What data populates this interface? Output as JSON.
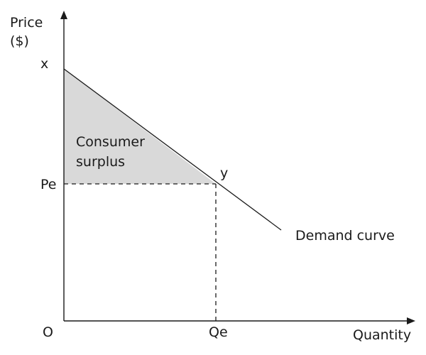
{
  "axes": {
    "y_label_line1": "Price",
    "y_label_line2": "($)",
    "x_label": "Quantity",
    "origin_label": "O"
  },
  "points": {
    "x_intercept_label": "x",
    "equilibrium_point_label": "y",
    "equilibrium_price_label": "Pe",
    "equilibrium_quantity_label": "Qe"
  },
  "regions": {
    "surplus_line1": "Consumer",
    "surplus_line2": "surplus"
  },
  "curves": {
    "demand_label": "Demand curve"
  },
  "colors": {
    "surplus_fill": "#d9d9d9",
    "line": "#1a1a1a",
    "text": "#1a1a1a"
  }
}
